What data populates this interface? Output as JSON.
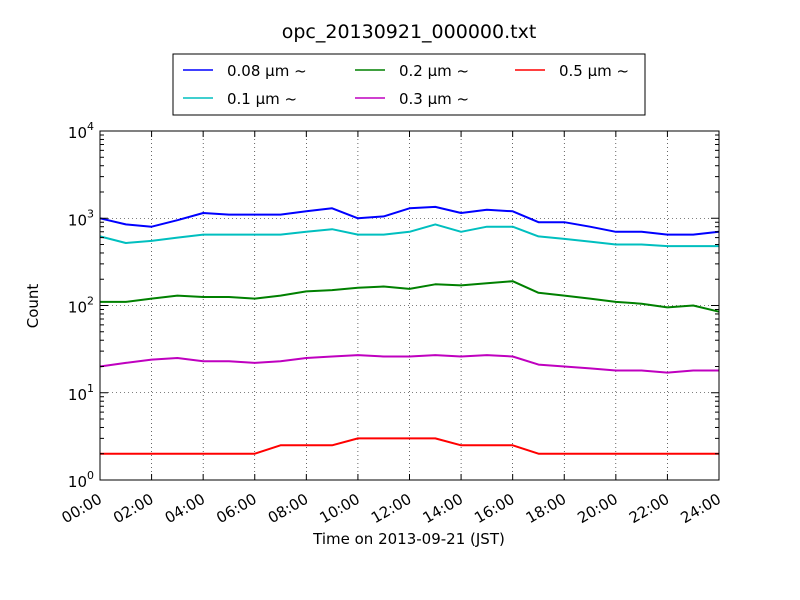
{
  "chart_data": {
    "type": "line",
    "title": "opc_20130921_000000.txt",
    "xlabel": "Time on 2013-09-21 (JST)",
    "ylabel": "Count",
    "xscale": "time",
    "yscale": "log",
    "xlim": [
      "2013-09-21 00:00",
      "2013-09-22 00:00"
    ],
    "ylim": [
      1,
      10000
    ],
    "grid": true,
    "legend_position": "top-center",
    "x_ticks": [
      "00:00",
      "02:00",
      "04:00",
      "06:00",
      "08:00",
      "10:00",
      "12:00",
      "14:00",
      "16:00",
      "18:00",
      "20:00",
      "22:00",
      "24:00"
    ],
    "y_ticks": [
      {
        "base": "10",
        "exp": "0",
        "value": 1
      },
      {
        "base": "10",
        "exp": "1",
        "value": 10
      },
      {
        "base": "10",
        "exp": "2",
        "value": 100
      },
      {
        "base": "10",
        "exp": "3",
        "value": 1000
      },
      {
        "base": "10",
        "exp": "4",
        "value": 10000
      }
    ],
    "x": [
      "00:00",
      "01:00",
      "02:00",
      "03:00",
      "04:00",
      "05:00",
      "06:00",
      "07:00",
      "08:00",
      "09:00",
      "10:00",
      "11:00",
      "12:00",
      "13:00",
      "14:00",
      "15:00",
      "16:00",
      "17:00",
      "18:00",
      "19:00",
      "20:00",
      "21:00",
      "22:00",
      "23:00",
      "24:00"
    ],
    "series": [
      {
        "name": "0.08 μm ~",
        "color": "#0000ff",
        "values": [
          1000,
          850,
          800,
          950,
          1150,
          1100,
          1100,
          1100,
          1200,
          1300,
          1000,
          1050,
          1300,
          1350,
          1150,
          1250,
          1200,
          900,
          900,
          800,
          700,
          700,
          650,
          650,
          700
        ]
      },
      {
        "name": "0.1 μm ~",
        "color": "#00bfbf",
        "values": [
          620,
          520,
          550,
          600,
          650,
          650,
          650,
          650,
          700,
          750,
          650,
          650,
          700,
          850,
          700,
          800,
          800,
          620,
          580,
          540,
          500,
          500,
          480,
          480,
          480
        ]
      },
      {
        "name": "0.2 μm ~",
        "color": "#008000",
        "values": [
          110,
          110,
          120,
          130,
          125,
          125,
          120,
          130,
          145,
          150,
          160,
          165,
          155,
          175,
          170,
          180,
          190,
          140,
          130,
          120,
          110,
          105,
          95,
          100,
          85
        ]
      },
      {
        "name": "0.3 μm ~",
        "color": "#bf00bf",
        "values": [
          20,
          22,
          24,
          25,
          23,
          23,
          22,
          23,
          25,
          26,
          27,
          26,
          26,
          27,
          26,
          27,
          26,
          21,
          20,
          19,
          18,
          18,
          17,
          18,
          18
        ]
      },
      {
        "name": "0.5 μm ~",
        "color": "#ff0000",
        "values": [
          2,
          2,
          2,
          2,
          2,
          2,
          2,
          2.5,
          2.5,
          2.5,
          3,
          3,
          3,
          3,
          2.5,
          2.5,
          2.5,
          2,
          2,
          2,
          2,
          2,
          2,
          2,
          2
        ]
      }
    ]
  }
}
